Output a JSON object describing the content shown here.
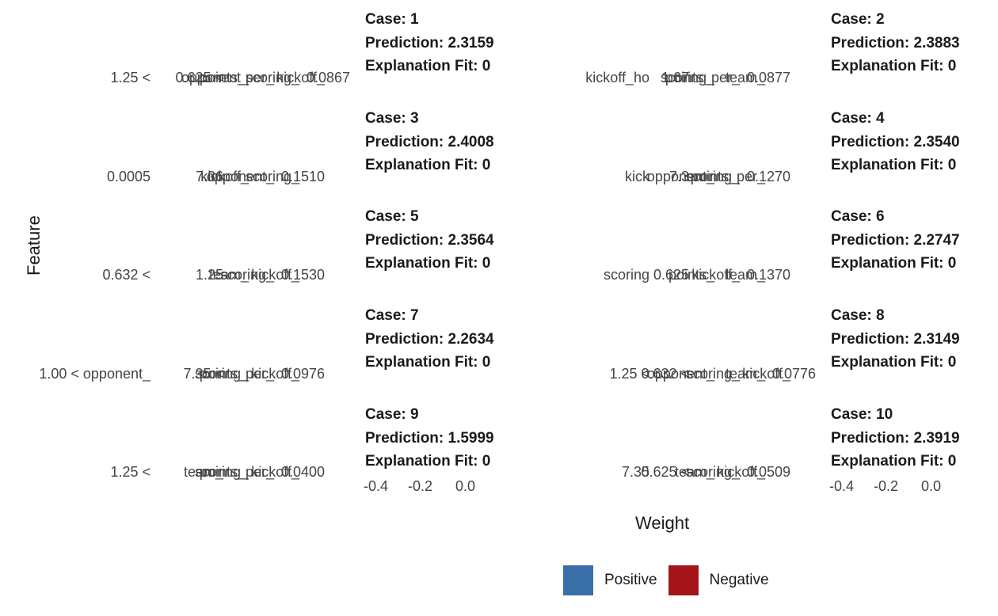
{
  "chart_data": {
    "type": "bar",
    "xlabel": "Weight",
    "ylabel": "Feature",
    "x_ticks": [
      "-0.4",
      "-0.2",
      "0.0"
    ],
    "legend": {
      "placement": "bottom",
      "entries": [
        {
          "name": "Positive",
          "color": "#3a6ea8"
        },
        {
          "name": "Negative",
          "color": "#a3141b"
        }
      ]
    },
    "panels": [
      {
        "case": "Case: 1",
        "prediction": "Prediction: 2.3159",
        "fit": "Explanation Fit: 0",
        "labels": [
          "1.25 <",
          "0.625 <",
          "opponent_",
          "points_per_",
          "scoring_",
          "kickoff_",
          "0.0867"
        ]
      },
      {
        "case": "Case: 2",
        "prediction": "Prediction: 2.3883",
        "fit": "Explanation Fit: 0",
        "labels": [
          "kickoff_ho",
          "1.67",
          "scoring_",
          "points_per_",
          "team_",
          "0.0877"
        ]
      },
      {
        "case": "Case: 3",
        "prediction": "Prediction: 2.4008",
        "fit": "Explanation Fit: 0",
        "labels": [
          "0.0005",
          "7.36",
          "kickoff_",
          "opponent_",
          "scoring_",
          "0.1510"
        ]
      },
      {
        "case": "Case: 4",
        "prediction": "Prediction: 2.3540",
        "fit": "Explanation Fit: 0",
        "labels": [
          "kick",
          "7.3",
          "opponent_",
          "scoring_",
          "points_per_",
          "0.1270"
        ]
      },
      {
        "case": "Case: 5",
        "prediction": "Prediction: 2.3564",
        "fit": "Explanation Fit: 0",
        "labels": [
          "0.632 <",
          "1.25",
          "team_",
          "scoring_",
          "kickoff_",
          "0.1530"
        ]
      },
      {
        "case": "Case: 6",
        "prediction": "Prediction: 2.2747",
        "fit": "Explanation Fit: 0",
        "labels": [
          "scoring",
          "0.625",
          "points_",
          "kickoff_",
          "team_",
          "0.1370"
        ]
      },
      {
        "case": "Case: 7",
        "prediction": "Prediction: 2.2634",
        "fit": "Explanation Fit: 0",
        "labels": [
          "1.00 < opponent_",
          "7.35 <",
          "scoring_",
          "points_per_",
          "kickoff_",
          "0.0976"
        ]
      },
      {
        "case": "Case: 8",
        "prediction": "Prediction: 2.3149",
        "fit": "Explanation Fit: 0",
        "labels": [
          "1.25 <",
          "0.632 <",
          "opponent_",
          "scoring_",
          "team_",
          "kickoff_",
          "0.0776"
        ]
      },
      {
        "case": "Case: 9",
        "prediction": "Prediction: 1.5999",
        "fit": "Explanation Fit: 0",
        "labels": [
          "1.25 <",
          "team_",
          "scoring_",
          "points_per_",
          "kickoff_",
          "0.0400"
        ]
      },
      {
        "case": "Case: 10",
        "prediction": "Prediction: 2.3919",
        "fit": "Explanation Fit: 0",
        "labels": [
          "7.35",
          "0.625 <",
          "team_",
          "scoring_",
          "kickoff_",
          "0.0509"
        ]
      }
    ]
  }
}
